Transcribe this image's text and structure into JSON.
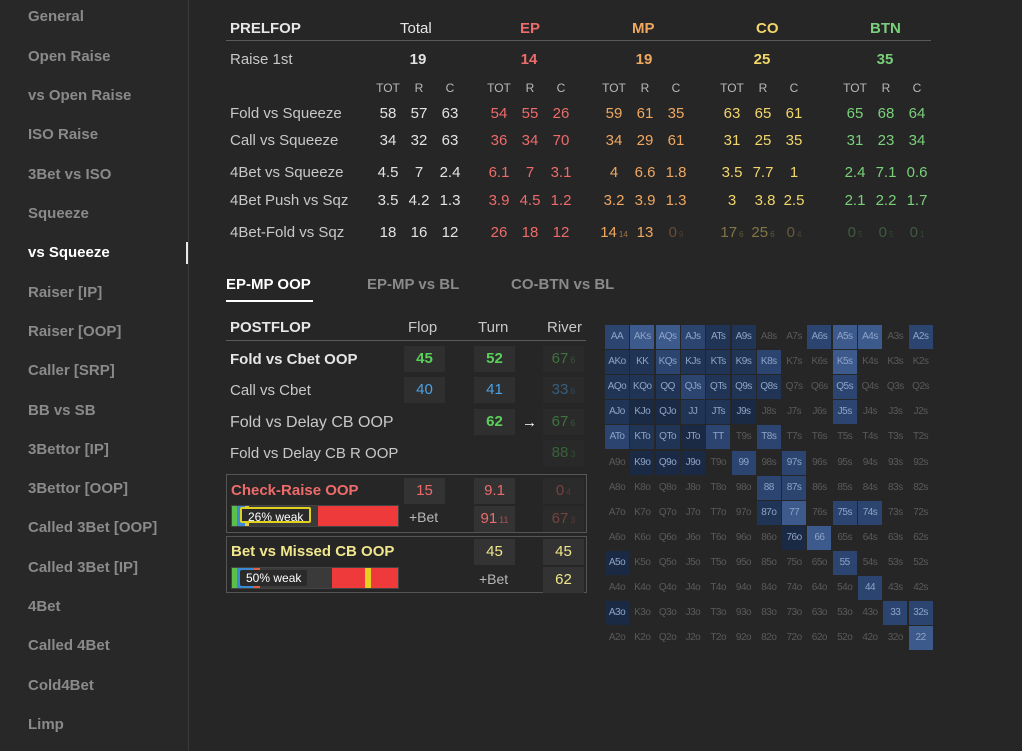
{
  "sidebar": {
    "items": [
      {
        "label": "General",
        "active": false
      },
      {
        "label": "Open Raise",
        "active": false
      },
      {
        "label": "vs Open Raise",
        "active": false
      },
      {
        "label": "ISO Raise",
        "active": false
      },
      {
        "label": "3Bet vs ISO",
        "active": false
      },
      {
        "label": "Squeeze",
        "active": false
      },
      {
        "label": "vs Squeeze",
        "active": true
      },
      {
        "label": "Raiser [IP]",
        "active": false
      },
      {
        "label": "Raiser [OOP]",
        "active": false
      },
      {
        "label": "Caller [SRP]",
        "active": false
      },
      {
        "label": "BB vs SB",
        "active": false
      },
      {
        "label": "3Bettor [IP]",
        "active": false
      },
      {
        "label": "3Bettor [OOP]",
        "active": false
      },
      {
        "label": "Called 3Bet [OOP]",
        "active": false
      },
      {
        "label": "Called 3Bet [IP]",
        "active": false
      },
      {
        "label": "4Bet",
        "active": false
      },
      {
        "label": "Called 4Bet",
        "active": false
      },
      {
        "label": "Cold4Bet",
        "active": false
      },
      {
        "label": "Limp",
        "active": false
      }
    ]
  },
  "preflop": {
    "title": "PRELFOP",
    "columns": [
      "Total",
      "EP",
      "MP",
      "CO",
      "BTN"
    ],
    "colors": {
      "total": "#e2e2e2",
      "ep": "#ee6b6b",
      "mp": "#f0a860",
      "co": "#f2d66a",
      "btn": "#7ad07a"
    },
    "raise_first": {
      "label": "Raise 1st",
      "values": [
        "19",
        "14",
        "19",
        "25",
        "35"
      ]
    },
    "subheaders": [
      "TOT",
      "R",
      "C"
    ],
    "rows": [
      {
        "label": "Fold vs Squeeze",
        "values": [
          [
            "58",
            "57",
            "63"
          ],
          [
            "54",
            "55",
            "26"
          ],
          [
            "59",
            "61",
            "35"
          ],
          [
            "63",
            "65",
            "61"
          ],
          [
            "65",
            "68",
            "64"
          ]
        ]
      },
      {
        "label": "Call vs Squeeze",
        "values": [
          [
            "34",
            "32",
            "63"
          ],
          [
            "36",
            "34",
            "70"
          ],
          [
            "34",
            "29",
            "61"
          ],
          [
            "31",
            "25",
            "35"
          ],
          [
            "31",
            "23",
            "34"
          ]
        ]
      },
      {
        "label": "4Bet vs Squeeze",
        "values": [
          [
            "4.5",
            "7",
            "2.4"
          ],
          [
            "6.1",
            "7",
            "3.1"
          ],
          [
            "4",
            "6.6",
            "1.8"
          ],
          [
            "3.5",
            "7.7",
            "1"
          ],
          [
            "2.4",
            "7.1",
            "0.6"
          ]
        ]
      },
      {
        "label": "4Bet Push vs Sqz",
        "values": [
          [
            "3.5",
            "4.2",
            "1.3"
          ],
          [
            "3.9",
            "4.5",
            "1.2"
          ],
          [
            "3.2",
            "3.9",
            "1.3"
          ],
          [
            "3",
            "3.8",
            "2.5"
          ],
          [
            "2.1",
            "2.2",
            "1.7"
          ]
        ]
      },
      {
        "label": "4Bet-Fold vs Sqz",
        "values": [
          [
            "18",
            "16",
            "12"
          ],
          [
            "26",
            "18",
            "12"
          ],
          [
            "14",
            "13",
            "0"
          ],
          [
            "17",
            "25",
            "0"
          ],
          [
            "0",
            "0",
            "0"
          ]
        ]
      }
    ],
    "last_row_small": {
      "mp_tot": "14",
      "mp_c": "9",
      "co_tot": "6",
      "co_r": "6",
      "co_c": "4",
      "btn_tot": "5",
      "btn_r": "5",
      "btn_c": "1"
    }
  },
  "tabs": [
    {
      "label": "EP-MP OOP",
      "active": true
    },
    {
      "label": "EP-MP vs BL",
      "active": false
    },
    {
      "label": "CO-BTN vs BL",
      "active": false
    }
  ],
  "postflop": {
    "title": "POSTFLOP",
    "columns": [
      "Flop",
      "Turn",
      "River"
    ],
    "rows": [
      {
        "label": "Fold vs Cbet OOP",
        "flop": "45",
        "turn": "52",
        "river": "67",
        "river_small": "6"
      },
      {
        "label": "Call vs Cbet",
        "flop": "40",
        "turn": "41",
        "river": "33",
        "river_small": "6"
      },
      {
        "label": "Fold vs Delay CB OOP",
        "turn": "62",
        "arrow": "→",
        "river": "67",
        "river_small": "6"
      },
      {
        "label": "Fold vs Delay CB R OOP",
        "river": "88",
        "river_small": "3"
      }
    ],
    "check_raise": {
      "label": "Check-Raise OOP",
      "flop": "15",
      "turn": "9.1",
      "river": "0",
      "river_small": "4",
      "bar_label": "26% weak",
      "bet_label": "+Bet",
      "bet_turn": "91",
      "bet_turn_small": "11",
      "bet_river": "67",
      "bet_river_small": "3",
      "weak_fraction": 0.26
    },
    "bet_missed": {
      "label": "Bet vs Missed CB OOP",
      "turn": "45",
      "river": "45",
      "bar_label": "50% weak",
      "bet_label": "+Bet",
      "bet_river": "62",
      "weak_fraction": 0.5
    }
  },
  "hand_grid": {
    "ranks": [
      "A",
      "K",
      "Q",
      "J",
      "T",
      "9",
      "8",
      "7",
      "6",
      "5",
      "4",
      "3",
      "2"
    ],
    "colors": {
      "strong": "#3d5a8c",
      "medium": "#2c4470",
      "light": "#203556",
      "dark": "#1a2a44",
      "none": "transparent"
    },
    "highlight": {
      "AA": "medium",
      "AKs": "strong",
      "AQs": "strong",
      "AJs": "medium",
      "ATs": "light",
      "A9s": "light",
      "A6s": "medium",
      "A5s": "strong",
      "A4s": "strong",
      "A2s": "medium",
      "AKo": "light",
      "KK": "light",
      "KQs": "medium",
      "KJs": "light",
      "KTs": "light",
      "K9s": "light",
      "K8s": "medium",
      "K5s": "strong",
      "AQo": "light",
      "KQo": "light",
      "QQ": "light",
      "QJs": "medium",
      "QTs": "light",
      "Q9s": "light",
      "Q8s": "light",
      "Q5s": "medium",
      "AJo": "light",
      "KJo": "dark",
      "QJo": "dark",
      "JJ": "light",
      "JTs": "light",
      "J9s": "dark",
      "J5s": "medium",
      "ATo": "medium",
      "KTo": "light",
      "QTo": "light",
      "JTo": "dark",
      "TT": "medium",
      "T8s": "medium",
      "K9o": "dark",
      "Q9o": "dark",
      "J9o": "dark",
      "99": "medium",
      "97s": "medium",
      "88": "medium",
      "87s": "medium",
      "87o": "light",
      "77": "strong",
      "75s": "medium",
      "74s": "medium",
      "76o": "dark",
      "66": "strong",
      "A5o": "dark",
      "55": "medium",
      "44": "medium",
      "A3o": "dark",
      "33": "medium",
      "32s": "medium",
      "22": "strong"
    }
  }
}
